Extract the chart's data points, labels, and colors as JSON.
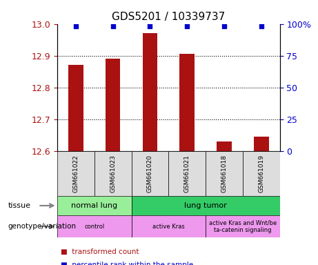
{
  "title": "GDS5201 / 10339737",
  "samples": [
    "GSM661022",
    "GSM661023",
    "GSM661020",
    "GSM661021",
    "GSM661018",
    "GSM661019"
  ],
  "transformed_counts": [
    12.87,
    12.89,
    12.97,
    12.905,
    12.63,
    12.645
  ],
  "percentile_ranks": [
    98,
    98,
    98,
    98,
    98,
    98
  ],
  "ylim_left": [
    12.6,
    13.0
  ],
  "ylim_right": [
    0,
    100
  ],
  "yticks_left": [
    12.6,
    12.7,
    12.8,
    12.9,
    13.0
  ],
  "yticks_right": [
    0,
    25,
    50,
    75,
    100
  ],
  "bar_color": "#AA1111",
  "dot_color": "#0000CC",
  "tissue_labels": [
    {
      "label": "normal lung",
      "span": [
        0,
        2
      ],
      "color": "#99EE99"
    },
    {
      "label": "lung tumor",
      "span": [
        2,
        6
      ],
      "color": "#33CC66"
    }
  ],
  "genotype_labels": [
    {
      "label": "control",
      "span": [
        0,
        2
      ],
      "color": "#EE99EE"
    },
    {
      "label": "active Kras",
      "span": [
        2,
        4
      ],
      "color": "#EE99EE"
    },
    {
      "label": "active Kras and Wnt/be\nta-catenin signaling",
      "span": [
        4,
        6
      ],
      "color": "#EE99EE"
    }
  ],
  "legend_items": [
    {
      "label": "transformed count",
      "color": "#AA1111"
    },
    {
      "label": "percentile rank within the sample",
      "color": "#0000CC"
    }
  ],
  "sample_box_color": "#DDDDDD",
  "title_fontsize": 11,
  "tick_fontsize": 9
}
